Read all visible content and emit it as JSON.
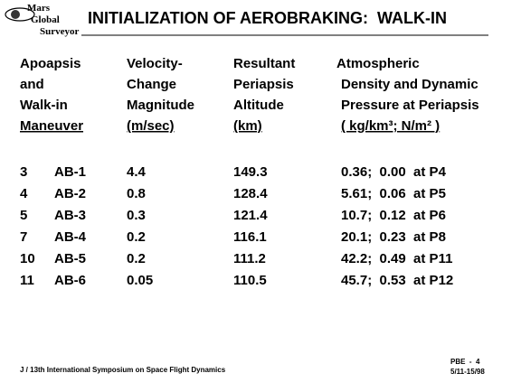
{
  "logo": {
    "lines": [
      "Mars",
      "Global",
      "Surveyor"
    ]
  },
  "header": {
    "title": "INITIALIZATION OF AEROBRAKING:  WALK-IN"
  },
  "table": {
    "columns": [
      [
        "Apoapsis",
        "and",
        "Walk-in",
        "Maneuver"
      ],
      [
        "Velocity-",
        "Change",
        "Magnitude",
        "(m/sec)"
      ],
      [
        "Resultant",
        "Periapsis",
        "Altitude",
        "(km)"
      ],
      [
        "Atmospheric",
        "Density and Dynamic",
        "Pressure at Periapsis",
        "( kg/km³; N/m² )"
      ]
    ],
    "rows": [
      [
        "3",
        "AB-1",
        "4.4",
        "149.3",
        "0.36;  0.00  at P4"
      ],
      [
        "4",
        "AB-2",
        "0.8",
        "128.4",
        "5.61;  0.06  at P5"
      ],
      [
        "5",
        "AB-3",
        "0.3",
        "121.4",
        "10.7;  0.12  at P6"
      ],
      [
        "7",
        "AB-4",
        "0.2",
        "116.1",
        "20.1;  0.23  at P8"
      ],
      [
        "10",
        "AB-5",
        "0.2",
        "111.2",
        "42.2;  0.49  at P11"
      ],
      [
        "11",
        "AB-6",
        "0.05",
        "110.5",
        "45.7;  0.53  at P12"
      ]
    ]
  },
  "footer": {
    "left": "J / 13th International Symposium on Space Flight Dynamics",
    "right": [
      "PBE  -  4",
      "5/11-15/98"
    ]
  }
}
